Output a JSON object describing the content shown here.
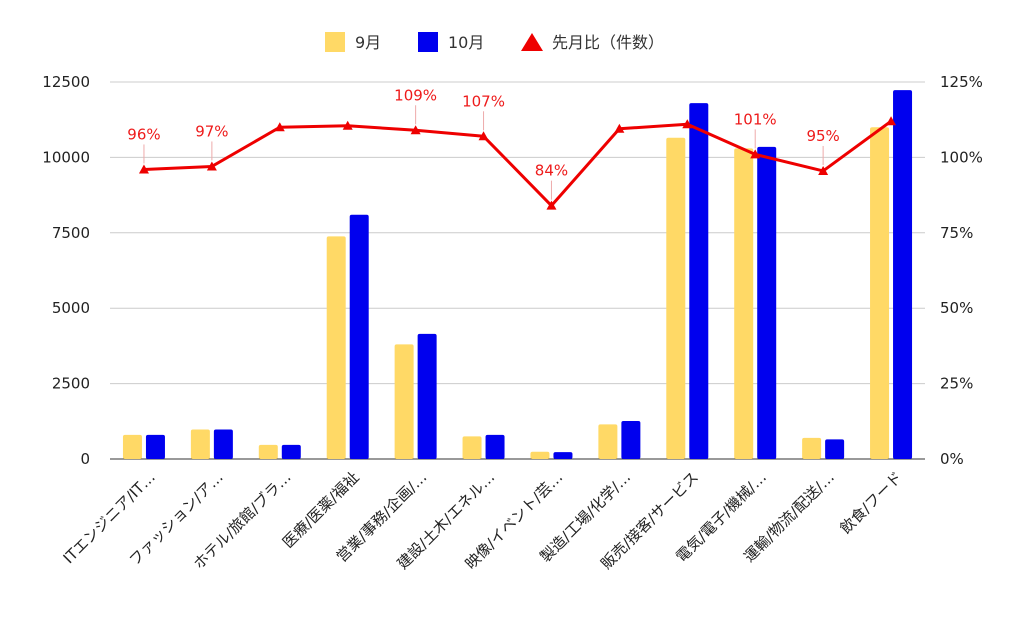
{
  "colors": {
    "sep": "#FFD966",
    "oct": "#0000EE",
    "ratio": "#EE0000",
    "grid": "#CCCCCC"
  },
  "chart_data": {
    "type": "bar",
    "categories": [
      "ITエンジニア/IT…",
      "ファッション/ア…",
      "ホテル/旅館/ブラ…",
      "医療/医薬/福祉",
      "営業/事務/企画/…",
      "建設/土木/エネル…",
      "映像/イベント/芸…",
      "製造/工場/化学/…",
      "販売/接客/サービス",
      "電気/電子/機械/…",
      "運輸/物流/配送/…",
      "飲食/フード"
    ],
    "series": [
      {
        "name": "9月",
        "values": [
          800,
          980,
          470,
          7380,
          3800,
          750,
          240,
          1150,
          10650,
          10300,
          700,
          11000
        ]
      },
      {
        "name": "10月",
        "values": [
          800,
          980,
          470,
          8100,
          4150,
          800,
          230,
          1260,
          11800,
          10350,
          650,
          12230
        ]
      },
      {
        "name": "先月比（件数）",
        "type": "line",
        "axis": "right",
        "values": [
          0.96,
          0.97,
          1.1,
          1.105,
          1.09,
          1.07,
          0.84,
          1.095,
          1.11,
          1.01,
          0.955,
          1.12
        ]
      }
    ],
    "line_labels": [
      "96%",
      "97%",
      "",
      "",
      "109%",
      "107%",
      "84%",
      "",
      "",
      "101%",
      "95%",
      ""
    ],
    "ylim_left": [
      0,
      12500
    ],
    "yticks_left": [
      "0",
      "2500",
      "5000",
      "7500",
      "10000",
      "12500"
    ],
    "ylim_right": [
      0,
      1.25
    ],
    "yticks_right": [
      "0%",
      "25%",
      "50%",
      "75%",
      "100%",
      "125%"
    ],
    "grid": true,
    "legend_position": "top"
  }
}
